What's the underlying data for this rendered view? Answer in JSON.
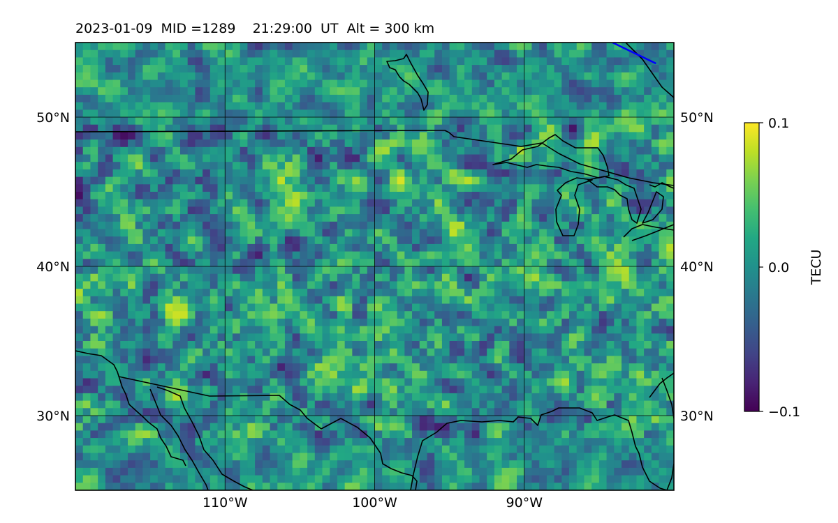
{
  "title": "2023-01-09  MID =1289    21:29:00  UT  Alt = 300 km",
  "chart_data": {
    "type": "heatmap",
    "description_field": "TEC perturbation map over North America",
    "projection": "PlateCarree",
    "lon_range": [
      -120,
      -80
    ],
    "lat_range": [
      25,
      55
    ],
    "grid": true,
    "x_ticks": [
      -110,
      -100,
      -90
    ],
    "x_tick_labels": [
      "110°W",
      "100°W",
      "90°W"
    ],
    "y_ticks": [
      30,
      40,
      50
    ],
    "y_tick_labels_left": [
      "30°N",
      "40°N",
      "50°N"
    ],
    "y_tick_labels_right": [
      "30°N",
      "40°N",
      "50°N"
    ],
    "colormap": "viridis",
    "colorbar": {
      "label": "TECU",
      "vmin": -0.1,
      "vmax": 0.1,
      "ticks": [
        -0.1,
        0.0,
        0.1
      ],
      "tick_labels": [
        "−0.1",
        "0.0",
        "0.1"
      ],
      "placement": "right"
    },
    "annotation_line": {
      "color": "#0000ff",
      "lon": [
        -84.1,
        -81.2
      ],
      "lat": [
        55,
        53.6
      ]
    }
  },
  "colors": {
    "coastline": "#000000",
    "grid": "#000000",
    "blue_line": "#0000ff"
  }
}
